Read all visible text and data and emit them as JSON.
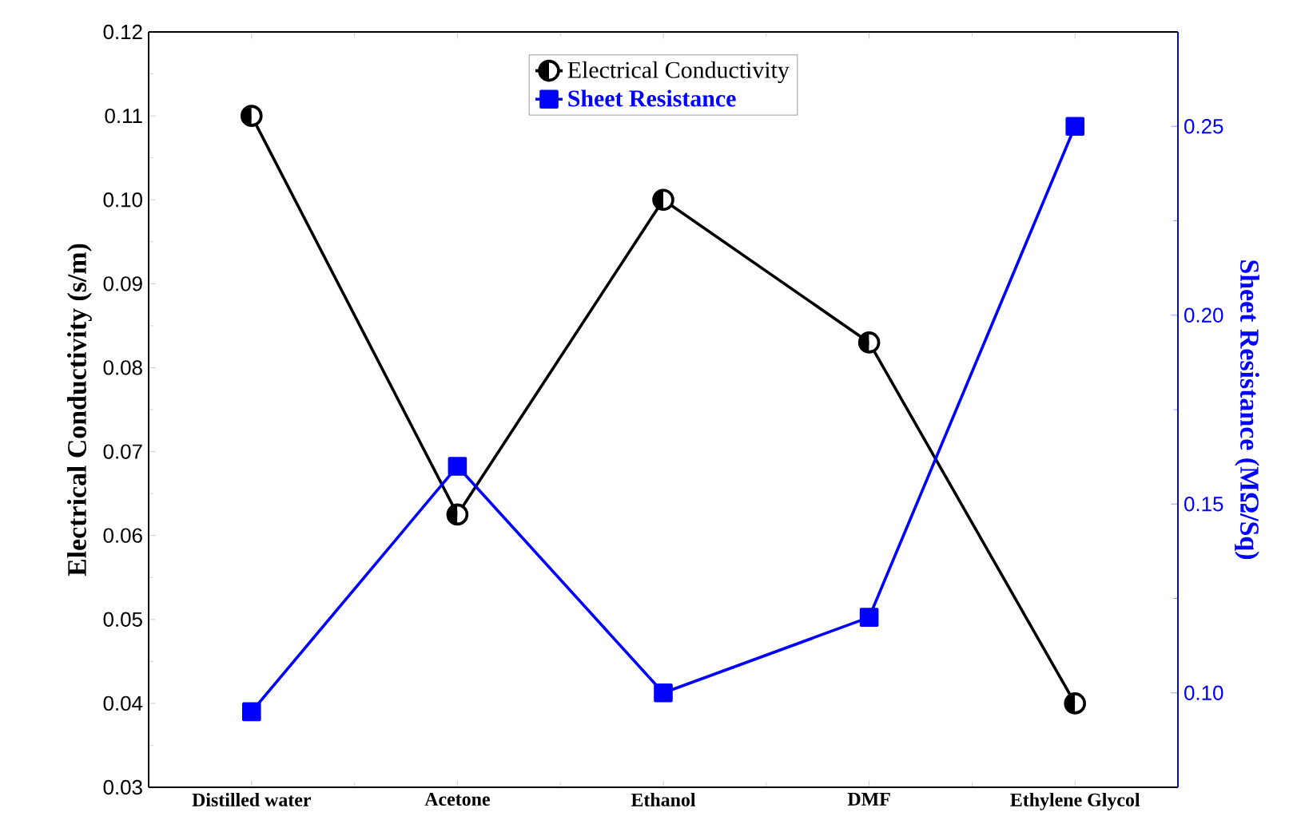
{
  "chart_data": {
    "type": "line",
    "categories": [
      "Distilled water",
      "Acetone",
      "Ethanol",
      "DMF",
      "Ethylene Glycol"
    ],
    "ylabel": "Electrical Conductivity (s/m)",
    "y2label": "Sheet Resistance (MΩ/Sq)",
    "ylim": [
      0.03,
      0.12
    ],
    "yticks": [
      {
        "value": 0.03,
        "label": "0.03"
      },
      {
        "value": 0.04,
        "label": "0.04"
      },
      {
        "value": 0.05,
        "label": "0.05"
      },
      {
        "value": 0.06,
        "label": "0.06"
      },
      {
        "value": 0.07,
        "label": "0.07"
      },
      {
        "value": 0.08,
        "label": "0.08"
      },
      {
        "value": 0.09,
        "label": "0.09"
      },
      {
        "value": 0.1,
        "label": "0.10"
      },
      {
        "value": 0.11,
        "label": "0.11"
      },
      {
        "value": 0.12,
        "label": "0.12"
      }
    ],
    "y2lim": [
      0.075,
      0.275
    ],
    "y2ticks": [
      {
        "value": 0.1,
        "label": "0.10"
      },
      {
        "value": 0.15,
        "label": "0.15"
      },
      {
        "value": 0.2,
        "label": "0.20"
      },
      {
        "value": 0.25,
        "label": "0.25"
      }
    ],
    "legend": "top",
    "series": [
      {
        "name": "Electrical Conductivity",
        "color": "#000000",
        "marker": "circle",
        "values": [
          0.11,
          0.0625,
          0.1,
          0.083,
          0.04
        ]
      },
      {
        "name": "Sheet Resistance",
        "color": "#0000ff",
        "marker": "square",
        "axis": "y2",
        "values": [
          0.095,
          0.16,
          0.1,
          0.12,
          0.25
        ]
      }
    ]
  }
}
